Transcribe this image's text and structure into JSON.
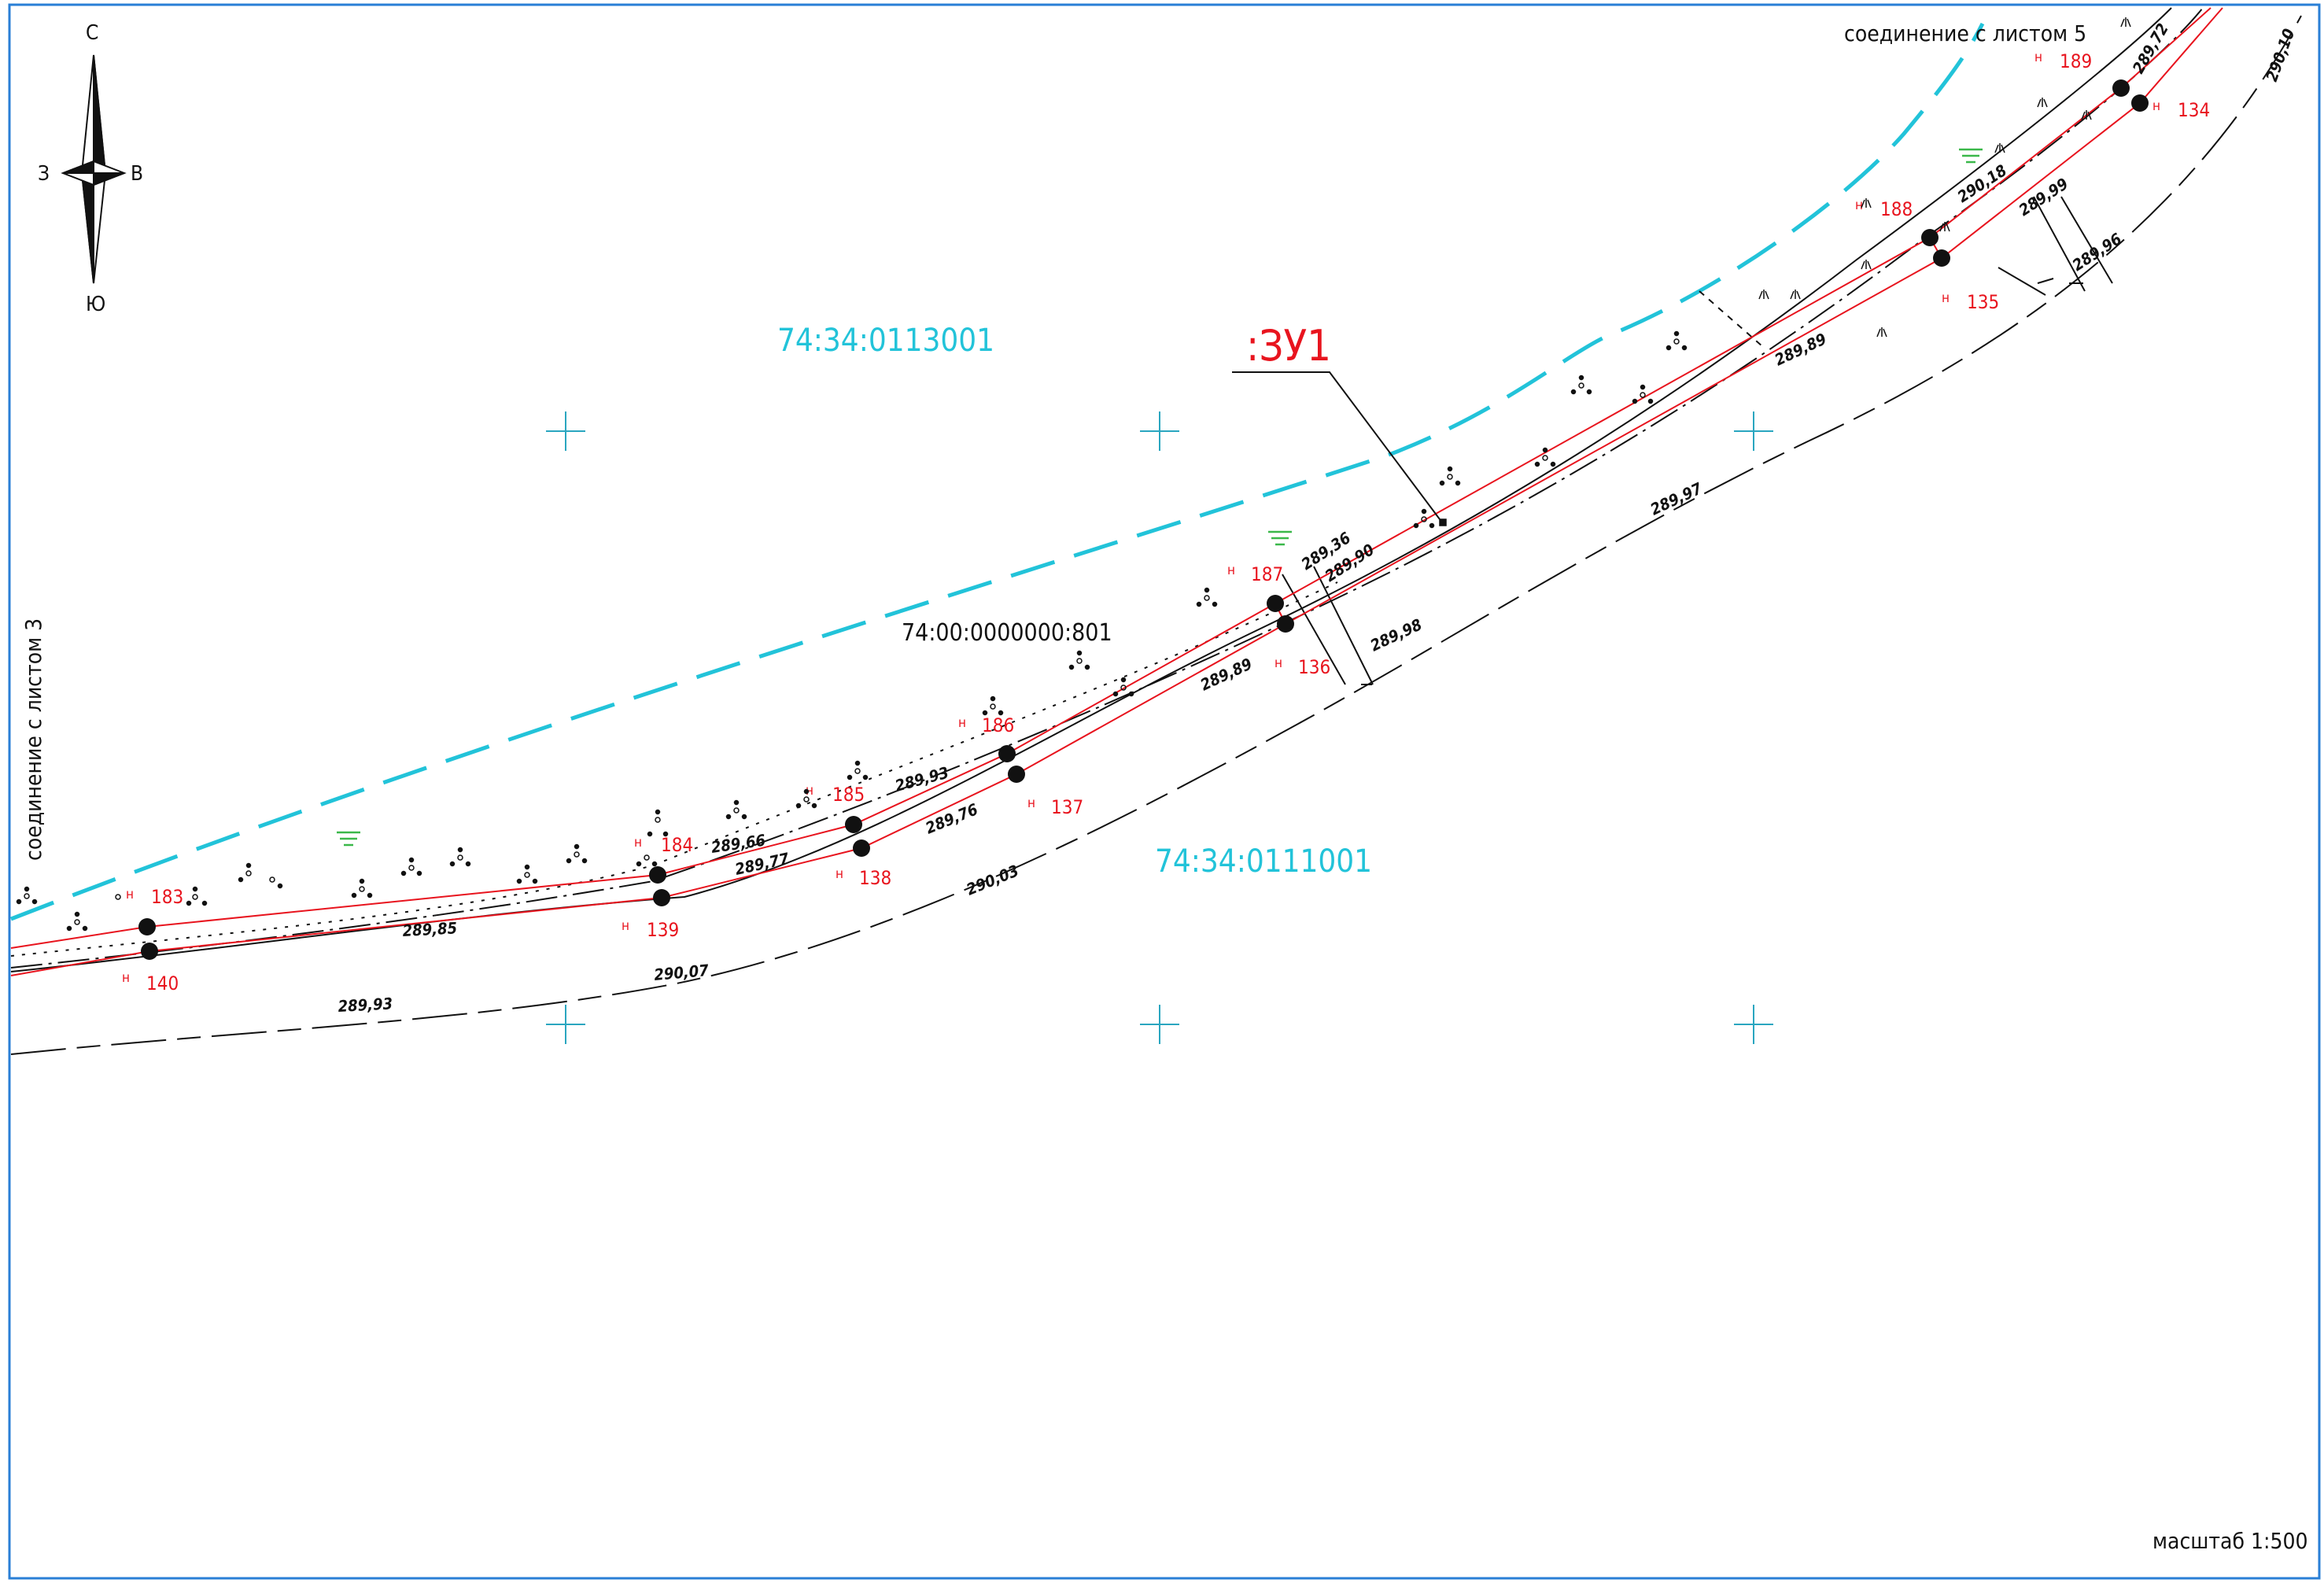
{
  "map": {
    "compass": {
      "north": "С",
      "south": "Ю",
      "west": "З",
      "east": "В"
    },
    "connection_top": "соединение с листом 5",
    "connection_left": "соединение с листом 3",
    "scale": "масштаб 1:500",
    "zone_label": ":ЗУ1",
    "cadastral_quarters": [
      "74:34:0113001",
      "74:34:0111001"
    ],
    "cadastral_parcel": "74:00:0000000:801",
    "points": [
      {
        "id": "183",
        "prefix": "н"
      },
      {
        "id": "184",
        "prefix": "н"
      },
      {
        "id": "185",
        "prefix": "н"
      },
      {
        "id": "186",
        "prefix": "н"
      },
      {
        "id": "187",
        "prefix": "н"
      },
      {
        "id": "188",
        "prefix": "н"
      },
      {
        "id": "189",
        "prefix": "н"
      },
      {
        "id": "134",
        "prefix": "н"
      },
      {
        "id": "135",
        "prefix": "н"
      },
      {
        "id": "136",
        "prefix": "н"
      },
      {
        "id": "137",
        "prefix": "н"
      },
      {
        "id": "138",
        "prefix": "н"
      },
      {
        "id": "139",
        "prefix": "н"
      },
      {
        "id": "140",
        "prefix": "н"
      }
    ],
    "elevations": [
      "289,72",
      "290,10",
      "290,18",
      "289,99",
      "289,96",
      "289,89",
      "289,97",
      "289,36",
      "289,90",
      "289,98",
      "289,89",
      "289,93",
      "289,76",
      "289,66",
      "289,77",
      "290,03",
      "289,85",
      "290,07",
      "289,93"
    ],
    "colors": {
      "boundary": "#e8141e",
      "quarter_boundary": "#22c3d9",
      "frame": "#2a7fd6",
      "grid_cross": "#2aa6c0",
      "water_symbol": "#3bb84a"
    }
  }
}
